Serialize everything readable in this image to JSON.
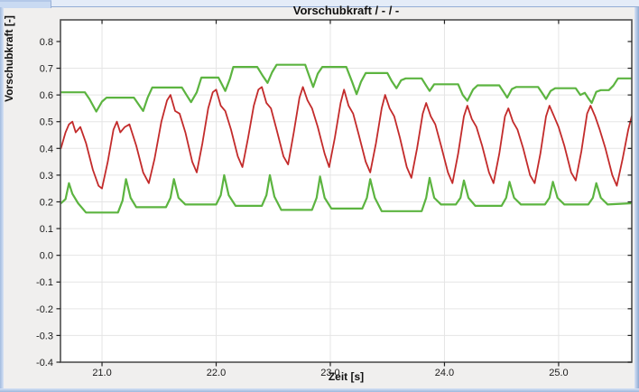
{
  "window": {
    "background": "#f0efee",
    "frame_color": "#c3d5f0"
  },
  "chart_data": {
    "type": "line",
    "title": "Vorschubkraft / - / -",
    "xlabel": "Zeit [s]",
    "ylabel": "Vorschubkraft [-]",
    "xlim": [
      20.636,
      25.641
    ],
    "ylim": [
      -0.4,
      0.881
    ],
    "grid": {
      "show": true,
      "color": "#e5e5e5"
    },
    "legend": "none",
    "xticks": {
      "values": [
        21.0,
        22.0,
        23.0,
        24.0,
        25.0
      ],
      "labels": [
        "21.0",
        "22.0",
        "23.0",
        "24.0",
        "25.0"
      ]
    },
    "yticks": {
      "values": [
        0.8,
        0.7,
        0.6,
        0.5,
        0.4,
        0.3,
        0.2,
        0.1,
        0.0,
        -0.1,
        -0.2,
        -0.3,
        -0.4
      ],
      "labels": [
        "0.8",
        "0.7",
        "0.6",
        "0.5",
        "0.4",
        "0.3",
        "0.2",
        "0.1",
        "0.0",
        "-0.1",
        "-0.2",
        "-0.3",
        "-0.4"
      ]
    },
    "colors": {
      "signal": "#c32b2b",
      "envelope": "#5cb440",
      "plot_border": "#4f4f4f",
      "plot_background": "#ffffff"
    },
    "series": [
      {
        "name": "upper-envelope",
        "color_key": "envelope",
        "width": 2.2,
        "points": [
          [
            20.64,
            0.61
          ],
          [
            20.85,
            0.61
          ],
          [
            20.89,
            0.585
          ],
          [
            20.95,
            0.538
          ],
          [
            21.0,
            0.575
          ],
          [
            21.04,
            0.59
          ],
          [
            21.28,
            0.59
          ],
          [
            21.32,
            0.565
          ],
          [
            21.36,
            0.54
          ],
          [
            21.4,
            0.59
          ],
          [
            21.44,
            0.628
          ],
          [
            21.7,
            0.628
          ],
          [
            21.74,
            0.6
          ],
          [
            21.78,
            0.573
          ],
          [
            21.83,
            0.61
          ],
          [
            21.87,
            0.665
          ],
          [
            22.02,
            0.665
          ],
          [
            22.05,
            0.64
          ],
          [
            22.08,
            0.615
          ],
          [
            22.12,
            0.66
          ],
          [
            22.15,
            0.705
          ],
          [
            22.36,
            0.705
          ],
          [
            22.41,
            0.67
          ],
          [
            22.45,
            0.645
          ],
          [
            22.49,
            0.685
          ],
          [
            22.53,
            0.713
          ],
          [
            22.78,
            0.713
          ],
          [
            22.82,
            0.665
          ],
          [
            22.85,
            0.63
          ],
          [
            22.89,
            0.68
          ],
          [
            22.93,
            0.705
          ],
          [
            23.14,
            0.705
          ],
          [
            23.19,
            0.65
          ],
          [
            23.23,
            0.603
          ],
          [
            23.27,
            0.65
          ],
          [
            23.31,
            0.682
          ],
          [
            23.5,
            0.682
          ],
          [
            23.54,
            0.65
          ],
          [
            23.58,
            0.625
          ],
          [
            23.62,
            0.655
          ],
          [
            23.66,
            0.662
          ],
          [
            23.8,
            0.662
          ],
          [
            23.84,
            0.635
          ],
          [
            23.87,
            0.615
          ],
          [
            23.91,
            0.64
          ],
          [
            24.12,
            0.64
          ],
          [
            24.16,
            0.6
          ],
          [
            24.2,
            0.578
          ],
          [
            24.25,
            0.62
          ],
          [
            24.29,
            0.636
          ],
          [
            24.48,
            0.636
          ],
          [
            24.52,
            0.61
          ],
          [
            24.55,
            0.59
          ],
          [
            24.59,
            0.622
          ],
          [
            24.63,
            0.63
          ],
          [
            24.82,
            0.63
          ],
          [
            24.86,
            0.605
          ],
          [
            24.89,
            0.585
          ],
          [
            24.93,
            0.615
          ],
          [
            24.97,
            0.625
          ],
          [
            25.15,
            0.625
          ],
          [
            25.19,
            0.6
          ],
          [
            25.23,
            0.608
          ],
          [
            25.26,
            0.588
          ],
          [
            25.29,
            0.57
          ],
          [
            25.33,
            0.612
          ],
          [
            25.37,
            0.618
          ],
          [
            25.44,
            0.618
          ],
          [
            25.48,
            0.635
          ],
          [
            25.52,
            0.662
          ],
          [
            25.64,
            0.662
          ]
        ]
      },
      {
        "name": "lower-envelope",
        "color_key": "envelope",
        "width": 2.2,
        "points": [
          [
            20.64,
            0.195
          ],
          [
            20.68,
            0.21
          ],
          [
            20.71,
            0.27
          ],
          [
            20.74,
            0.23
          ],
          [
            20.79,
            0.195
          ],
          [
            20.86,
            0.16
          ],
          [
            21.14,
            0.16
          ],
          [
            21.18,
            0.205
          ],
          [
            21.21,
            0.285
          ],
          [
            21.25,
            0.215
          ],
          [
            21.3,
            0.18
          ],
          [
            21.56,
            0.18
          ],
          [
            21.6,
            0.215
          ],
          [
            21.63,
            0.285
          ],
          [
            21.67,
            0.215
          ],
          [
            21.73,
            0.19
          ],
          [
            22.0,
            0.19
          ],
          [
            22.04,
            0.225
          ],
          [
            22.07,
            0.3
          ],
          [
            22.11,
            0.225
          ],
          [
            22.17,
            0.185
          ],
          [
            22.4,
            0.185
          ],
          [
            22.44,
            0.225
          ],
          [
            22.47,
            0.3
          ],
          [
            22.51,
            0.22
          ],
          [
            22.57,
            0.17
          ],
          [
            22.84,
            0.17
          ],
          [
            22.88,
            0.215
          ],
          [
            22.91,
            0.295
          ],
          [
            22.95,
            0.215
          ],
          [
            23.01,
            0.175
          ],
          [
            23.28,
            0.175
          ],
          [
            23.32,
            0.215
          ],
          [
            23.35,
            0.285
          ],
          [
            23.39,
            0.215
          ],
          [
            23.45,
            0.165
          ],
          [
            23.8,
            0.165
          ],
          [
            23.84,
            0.215
          ],
          [
            23.87,
            0.29
          ],
          [
            23.91,
            0.215
          ],
          [
            23.97,
            0.19
          ],
          [
            24.1,
            0.19
          ],
          [
            24.14,
            0.215
          ],
          [
            24.17,
            0.28
          ],
          [
            24.21,
            0.215
          ],
          [
            24.27,
            0.185
          ],
          [
            24.5,
            0.185
          ],
          [
            24.54,
            0.215
          ],
          [
            24.57,
            0.275
          ],
          [
            24.61,
            0.215
          ],
          [
            24.67,
            0.19
          ],
          [
            24.88,
            0.19
          ],
          [
            24.92,
            0.215
          ],
          [
            24.95,
            0.275
          ],
          [
            24.99,
            0.215
          ],
          [
            25.05,
            0.19
          ],
          [
            25.26,
            0.19
          ],
          [
            25.3,
            0.215
          ],
          [
            25.33,
            0.27
          ],
          [
            25.37,
            0.215
          ],
          [
            25.43,
            0.19
          ],
          [
            25.64,
            0.195
          ]
        ]
      },
      {
        "name": "vorschubkraft-signal",
        "color_key": "signal",
        "width": 1.8,
        "points": [
          [
            20.64,
            0.4
          ],
          [
            20.68,
            0.46
          ],
          [
            20.71,
            0.49
          ],
          [
            20.74,
            0.5
          ],
          [
            20.77,
            0.46
          ],
          [
            20.81,
            0.48
          ],
          [
            20.86,
            0.42
          ],
          [
            20.92,
            0.32
          ],
          [
            20.97,
            0.26
          ],
          [
            21.0,
            0.25
          ],
          [
            21.05,
            0.35
          ],
          [
            21.1,
            0.47
          ],
          [
            21.13,
            0.5
          ],
          [
            21.16,
            0.46
          ],
          [
            21.2,
            0.48
          ],
          [
            21.24,
            0.49
          ],
          [
            21.3,
            0.41
          ],
          [
            21.36,
            0.31
          ],
          [
            21.41,
            0.27
          ],
          [
            21.46,
            0.36
          ],
          [
            21.52,
            0.5
          ],
          [
            21.57,
            0.58
          ],
          [
            21.6,
            0.6
          ],
          [
            21.64,
            0.54
          ],
          [
            21.68,
            0.53
          ],
          [
            21.73,
            0.46
          ],
          [
            21.79,
            0.35
          ],
          [
            21.83,
            0.31
          ],
          [
            21.88,
            0.42
          ],
          [
            21.93,
            0.55
          ],
          [
            21.97,
            0.61
          ],
          [
            22.0,
            0.62
          ],
          [
            22.04,
            0.56
          ],
          [
            22.08,
            0.54
          ],
          [
            22.13,
            0.47
          ],
          [
            22.19,
            0.37
          ],
          [
            22.23,
            0.33
          ],
          [
            22.28,
            0.44
          ],
          [
            22.33,
            0.56
          ],
          [
            22.37,
            0.62
          ],
          [
            22.4,
            0.63
          ],
          [
            22.44,
            0.57
          ],
          [
            22.48,
            0.55
          ],
          [
            22.53,
            0.47
          ],
          [
            22.59,
            0.37
          ],
          [
            22.63,
            0.34
          ],
          [
            22.68,
            0.46
          ],
          [
            22.73,
            0.59
          ],
          [
            22.76,
            0.63
          ],
          [
            22.8,
            0.58
          ],
          [
            22.84,
            0.55
          ],
          [
            22.89,
            0.48
          ],
          [
            22.95,
            0.38
          ],
          [
            22.99,
            0.33
          ],
          [
            23.04,
            0.44
          ],
          [
            23.09,
            0.57
          ],
          [
            23.12,
            0.62
          ],
          [
            23.16,
            0.56
          ],
          [
            23.2,
            0.53
          ],
          [
            23.25,
            0.45
          ],
          [
            23.31,
            0.35
          ],
          [
            23.35,
            0.31
          ],
          [
            23.4,
            0.42
          ],
          [
            23.45,
            0.55
          ],
          [
            23.48,
            0.6
          ],
          [
            23.52,
            0.55
          ],
          [
            23.56,
            0.52
          ],
          [
            23.61,
            0.44
          ],
          [
            23.67,
            0.33
          ],
          [
            23.71,
            0.29
          ],
          [
            23.76,
            0.4
          ],
          [
            23.81,
            0.53
          ],
          [
            23.84,
            0.57
          ],
          [
            23.88,
            0.52
          ],
          [
            23.92,
            0.49
          ],
          [
            23.97,
            0.41
          ],
          [
            24.03,
            0.31
          ],
          [
            24.07,
            0.27
          ],
          [
            24.12,
            0.38
          ],
          [
            24.17,
            0.52
          ],
          [
            24.2,
            0.56
          ],
          [
            24.24,
            0.51
          ],
          [
            24.28,
            0.48
          ],
          [
            24.33,
            0.41
          ],
          [
            24.39,
            0.31
          ],
          [
            24.43,
            0.27
          ],
          [
            24.48,
            0.38
          ],
          [
            24.53,
            0.52
          ],
          [
            24.56,
            0.55
          ],
          [
            24.6,
            0.5
          ],
          [
            24.64,
            0.47
          ],
          [
            24.69,
            0.4
          ],
          [
            24.75,
            0.3
          ],
          [
            24.79,
            0.27
          ],
          [
            24.84,
            0.38
          ],
          [
            24.89,
            0.52
          ],
          [
            24.92,
            0.56
          ],
          [
            24.96,
            0.52
          ],
          [
            25.0,
            0.48
          ],
          [
            25.05,
            0.41
          ],
          [
            25.11,
            0.31
          ],
          [
            25.15,
            0.28
          ],
          [
            25.2,
            0.39
          ],
          [
            25.25,
            0.53
          ],
          [
            25.28,
            0.56
          ],
          [
            25.32,
            0.52
          ],
          [
            25.36,
            0.47
          ],
          [
            25.41,
            0.4
          ],
          [
            25.47,
            0.3
          ],
          [
            25.51,
            0.26
          ],
          [
            25.56,
            0.36
          ],
          [
            25.61,
            0.47
          ],
          [
            25.64,
            0.52
          ]
        ]
      }
    ]
  }
}
